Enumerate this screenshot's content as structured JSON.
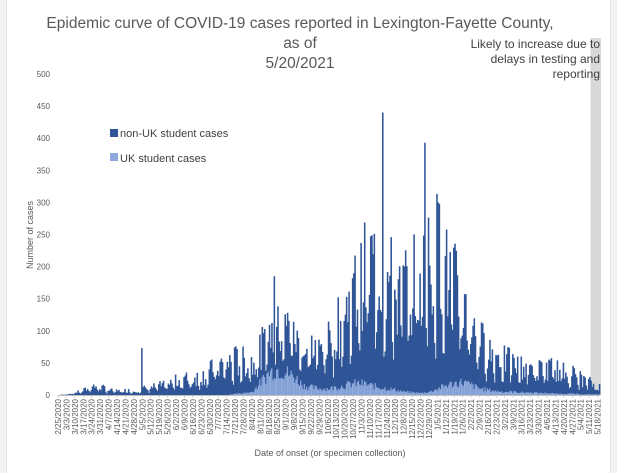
{
  "chart_data": {
    "type": "bar",
    "stacked": true,
    "title": "Epidemic curve of COVID-19 cases reported in Lexington-Fayette County, as of 5/20/2021",
    "title_line1": "Epidemic curve of COVID-19 cases reported in Lexington-Fayette County, as of",
    "title_line2": "5/20/2021",
    "xlabel": "Date of onset (or specimen collection)",
    "ylabel": "Number of cases",
    "ylim": [
      0,
      500
    ],
    "yticks": [
      0,
      50,
      100,
      150,
      200,
      250,
      300,
      350,
      400,
      450,
      500
    ],
    "grid": false,
    "legend_position": "left",
    "annotation": "Likely to increase due to delays in testing and reporting",
    "x_start": "2020-02-25",
    "x_end": "2021-05-19",
    "shaded_region": [
      "2021-05-12",
      "2021-05-19"
    ],
    "xtick_labels": [
      "2/25/2020",
      "3/3/2020",
      "3/10/2020",
      "3/17/2020",
      "3/24/2020",
      "3/31/2020",
      "4/7/2020",
      "4/14/2020",
      "4/21/2020",
      "4/28/2020",
      "5/5/2020",
      "5/12/2020",
      "5/19/2020",
      "5/26/2020",
      "6/2/2020",
      "6/9/2020",
      "6/16/2020",
      "6/23/2020",
      "6/30/2020",
      "7/7/2020",
      "7/14/2020",
      "7/21/2020",
      "7/28/2020",
      "8/4/2020",
      "8/11/2020",
      "8/18/2020",
      "8/25/2020",
      "9/1/2020",
      "9/8/2020",
      "9/15/2020",
      "9/22/2020",
      "9/29/2020",
      "10/6/2020",
      "10/13/2020",
      "10/20/2020",
      "10/27/2020",
      "11/3/2020",
      "11/10/2020",
      "11/17/2020",
      "11/24/2020",
      "12/1/2020",
      "12/8/2020",
      "12/15/2020",
      "12/22/2020",
      "12/29/2020",
      "1/5/2021",
      "1/12/2021",
      "1/19/2021",
      "1/26/2021",
      "2/2/2021",
      "2/9/2021",
      "2/16/2021",
      "2/23/2021",
      "3/2/2021",
      "3/9/2021",
      "3/16/2021",
      "3/23/2021",
      "3/30/2021",
      "4/6/2021",
      "4/13/2021",
      "4/20/2021",
      "4/27/2021",
      "5/4/2021",
      "5/11/2021",
      "5/18/2021"
    ],
    "series": [
      {
        "name": "non-UK student cases",
        "color": "#2f5597",
        "weekly_average": [
          0,
          1,
          3,
          6,
          12,
          10,
          6,
          5,
          6,
          5,
          8,
          10,
          12,
          14,
          18,
          20,
          22,
          24,
          30,
          38,
          40,
          42,
          40,
          38,
          42,
          45,
          55,
          60,
          50,
          45,
          48,
          50,
          60,
          75,
          90,
          110,
          130,
          150,
          160,
          140,
          120,
          130,
          140,
          150,
          160,
          175,
          140,
          120,
          95,
          75,
          60,
          50,
          45,
          40,
          35,
          32,
          32,
          30,
          32,
          30,
          28,
          25,
          20,
          15,
          10
        ]
      },
      {
        "name": "UK student cases",
        "color": "#8faadc",
        "weekly_average": [
          0,
          0,
          0,
          0,
          0,
          0,
          0,
          0,
          0,
          0,
          0,
          0,
          0,
          0,
          0,
          0,
          0,
          0,
          0,
          0,
          0,
          2,
          3,
          5,
          20,
          35,
          40,
          35,
          28,
          15,
          12,
          10,
          10,
          12,
          15,
          18,
          18,
          15,
          12,
          10,
          8,
          5,
          4,
          3,
          5,
          10,
          15,
          18,
          20,
          15,
          10,
          8,
          6,
          5,
          5,
          4,
          4,
          3,
          3,
          2,
          2,
          2,
          1,
          1,
          1
        ]
      }
    ],
    "peaks": [
      {
        "date": "2020-08-22",
        "value": 185
      },
      {
        "date": "2020-11-20",
        "value": 440
      },
      {
        "date": "2020-12-25",
        "value": 393
      },
      {
        "date": "2021-01-05",
        "value": 300
      },
      {
        "date": "2020-05-04",
        "value": 73
      }
    ]
  }
}
